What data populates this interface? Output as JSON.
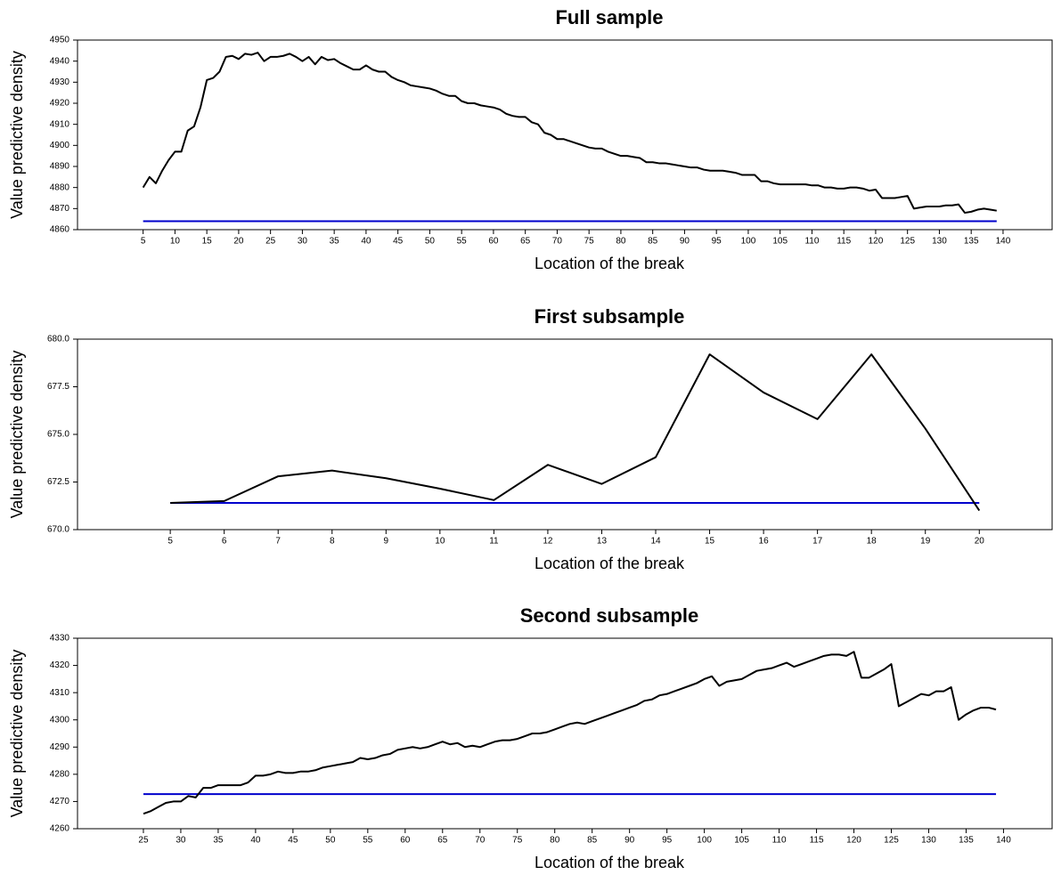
{
  "chart_data": [
    {
      "type": "line",
      "title": "Full sample",
      "x_label": "Location of the break",
      "y_label": "Value predictive density",
      "x": [
        5,
        6,
        7,
        8,
        9,
        10,
        11,
        12,
        13,
        14,
        15,
        16,
        17,
        18,
        19,
        20,
        21,
        22,
        23,
        24,
        25,
        26,
        27,
        28,
        29,
        30,
        31,
        32,
        33,
        34,
        35,
        36,
        37,
        38,
        39,
        40,
        41,
        42,
        43,
        44,
        45,
        46,
        47,
        48,
        49,
        50,
        51,
        52,
        53,
        54,
        55,
        56,
        57,
        58,
        59,
        60,
        61,
        62,
        63,
        64,
        65,
        66,
        67,
        68,
        69,
        70,
        71,
        72,
        73,
        74,
        75,
        76,
        77,
        78,
        79,
        80,
        81,
        82,
        83,
        84,
        85,
        86,
        87,
        88,
        89,
        90,
        91,
        92,
        93,
        94,
        95,
        96,
        97,
        98,
        99,
        100,
        101,
        102,
        103,
        104,
        105,
        106,
        107,
        108,
        109,
        110,
        111,
        112,
        113,
        114,
        115,
        116,
        117,
        118,
        119,
        120,
        121,
        122,
        123,
        124,
        125,
        126,
        127,
        128,
        129,
        130,
        131,
        132,
        133,
        134,
        135,
        136,
        137,
        138,
        139
      ],
      "series": [
        {
          "color": "#000000",
          "values": [
            4880,
            4885,
            4882,
            4888,
            4893,
            4897,
            4897,
            4907,
            4909,
            4918,
            4931,
            4932,
            4935,
            4942,
            4942.5,
            4941,
            4943.5,
            4943,
            4944,
            4940,
            4942,
            4942,
            4942.5,
            4943.5,
            4942,
            4940,
            4942,
            4938.5,
            4942,
            4940.5,
            4941,
            4939,
            4937.5,
            4936,
            4936,
            4938,
            4936,
            4935,
            4935,
            4932.5,
            4931,
            4930,
            4928.5,
            4928,
            4927.5,
            4927,
            4926,
            4924.5,
            4923.5,
            4923.5,
            4921,
            4920,
            4920,
            4919,
            4918.5,
            4918,
            4917,
            4915,
            4914,
            4913.5,
            4913.5,
            4911,
            4910,
            4906,
            4905,
            4903,
            4903,
            4902,
            4901,
            4900,
            4899,
            4898.5,
            4898.5,
            4897,
            4896,
            4895,
            4895,
            4894.5,
            4894,
            4892,
            4892,
            4891.5,
            4891.5,
            4891,
            4890.5,
            4890,
            4889.5,
            4889.5,
            4888.5,
            4888,
            4888,
            4888,
            4887.5,
            4887,
            4886,
            4886,
            4886,
            4883,
            4883,
            4882,
            4881.5,
            4881.5,
            4881.5,
            4881.5,
            4881.5,
            4881,
            4881,
            4880,
            4880,
            4879.5,
            4879.5,
            4880,
            4880,
            4879.5,
            4878.5,
            4879,
            4875,
            4875,
            4875,
            4875.5,
            4876,
            4870,
            4870.5,
            4871,
            4871,
            4871,
            4871.5,
            4871.5,
            4872,
            4868,
            4868.5,
            4869.5,
            4870,
            4869.5,
            4869
          ]
        }
      ],
      "reference_line": {
        "value": 4864,
        "color": "#0000cc"
      },
      "xlim": [
        -5.3,
        147.7
      ],
      "ylim": [
        4860,
        4950
      ],
      "xticks": [
        5,
        10,
        15,
        20,
        25,
        30,
        35,
        40,
        45,
        50,
        55,
        60,
        65,
        70,
        75,
        80,
        85,
        90,
        95,
        100,
        105,
        110,
        115,
        120,
        125,
        130,
        135,
        140
      ],
      "yticks": [
        4860,
        4870,
        4880,
        4890,
        4900,
        4910,
        4920,
        4930,
        4940,
        4950
      ],
      "grid": false
    },
    {
      "type": "line",
      "title": "First subsample",
      "x_label": "Location of the break",
      "y_label": "Value predictive density",
      "x": [
        5,
        6,
        7,
        8,
        9,
        10,
        11,
        12,
        13,
        14,
        15,
        16,
        17,
        18,
        19,
        20
      ],
      "series": [
        {
          "color": "#000000",
          "values": [
            671.4,
            671.5,
            672.8,
            673.1,
            672.7,
            672.15,
            671.55,
            673.4,
            672.4,
            673.8,
            679.2,
            677.2,
            675.8,
            679.2,
            675.3,
            671.0
          ]
        }
      ],
      "reference_line": {
        "value": 671.4,
        "color": "#0000cc"
      },
      "xlim": [
        3.28,
        21.35
      ],
      "ylim": [
        670,
        680
      ],
      "xticks": [
        5,
        6,
        7,
        8,
        9,
        10,
        11,
        12,
        13,
        14,
        15,
        16,
        17,
        18,
        19,
        20
      ],
      "yticks": [
        {
          "value": 670,
          "label": "670.0"
        },
        672.5,
        {
          "value": 675,
          "label": "675.0"
        },
        677.5,
        {
          "value": 680,
          "label": "680.0"
        }
      ],
      "grid": false
    },
    {
      "type": "line",
      "title": "Second subsample",
      "x_label": "Location of the break",
      "y_label": "Value predictive density",
      "x": [
        25,
        26,
        27,
        28,
        29,
        30,
        31,
        32,
        33,
        34,
        35,
        36,
        37,
        38,
        39,
        40,
        41,
        42,
        43,
        44,
        45,
        46,
        47,
        48,
        49,
        50,
        51,
        52,
        53,
        54,
        55,
        56,
        57,
        58,
        59,
        60,
        61,
        62,
        63,
        64,
        65,
        66,
        67,
        68,
        69,
        70,
        71,
        72,
        73,
        74,
        75,
        76,
        77,
        78,
        79,
        80,
        81,
        82,
        83,
        84,
        85,
        86,
        87,
        88,
        89,
        90,
        91,
        92,
        93,
        94,
        95,
        96,
        97,
        98,
        99,
        100,
        101,
        102,
        103,
        104,
        105,
        106,
        107,
        108,
        109,
        110,
        111,
        112,
        113,
        114,
        115,
        116,
        117,
        118,
        119,
        120,
        121,
        122,
        123,
        124,
        125,
        126,
        127,
        128,
        129,
        130,
        131,
        132,
        133,
        134,
        135,
        136,
        137,
        138,
        139
      ],
      "series": [
        {
          "color": "#000000",
          "values": [
            4265.5,
            4266.5,
            4268,
            4269.5,
            4270,
            4270,
            4272,
            4271.5,
            4275,
            4275,
            4276,
            4276,
            4276,
            4276,
            4277,
            4279.5,
            4279.5,
            4280,
            4281,
            4280.5,
            4280.5,
            4281,
            4281,
            4281.5,
            4282.5,
            4283,
            4283.5,
            4284,
            4284.5,
            4286,
            4285.5,
            4286,
            4287,
            4287.5,
            4289,
            4289.5,
            4290,
            4289.5,
            4290,
            4291,
            4292,
            4291,
            4291.5,
            4290,
            4290.5,
            4290,
            4291,
            4292,
            4292.5,
            4292.5,
            4293,
            4294,
            4295,
            4295,
            4295.5,
            4296.5,
            4297.5,
            4298.5,
            4299,
            4298.5,
            4299.5,
            4300.5,
            4301.5,
            4302.5,
            4303.5,
            4304.5,
            4305.5,
            4307,
            4307.5,
            4309,
            4309.5,
            4310.5,
            4311.5,
            4312.5,
            4313.5,
            4315,
            4316,
            4312.5,
            4314,
            4314.5,
            4315,
            4316.5,
            4318,
            4318.5,
            4319,
            4320,
            4321,
            4319.5,
            4320.5,
            4321.5,
            4322.5,
            4323.5,
            4324,
            4324,
            4323.5,
            4325,
            4315.5,
            4315.5,
            4317,
            4318.5,
            4320.5,
            4305,
            4306.5,
            4308,
            4309.5,
            4309,
            4310.5,
            4310.5,
            4312,
            4300,
            4302,
            4303.5,
            4304.5,
            4304.5,
            4303.8
          ]
        }
      ],
      "reference_line": {
        "value": 4272.7,
        "color": "#0000cc"
      },
      "xlim": [
        16.19,
        146.5
      ],
      "ylim": [
        4260,
        4330
      ],
      "xticks": [
        25,
        30,
        35,
        40,
        45,
        50,
        55,
        60,
        65,
        70,
        75,
        80,
        85,
        90,
        95,
        100,
        105,
        110,
        115,
        120,
        125,
        130,
        135,
        140
      ],
      "yticks": [
        4260,
        4270,
        4280,
        4290,
        4300,
        4310,
        4320,
        4330
      ],
      "grid": false
    }
  ]
}
